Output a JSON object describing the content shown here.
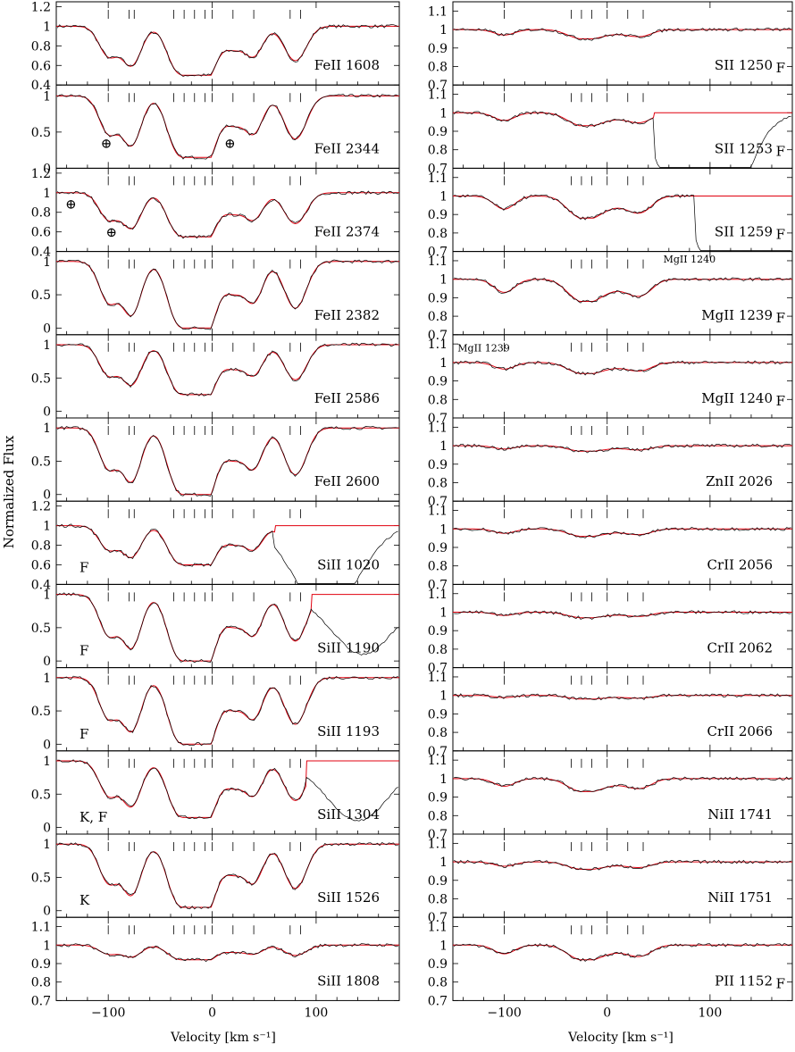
{
  "chart_data": {
    "type": "line",
    "ylabel": "Normalized Flux",
    "columns": [
      {
        "name": "left",
        "xlabel": "Velocity [km s⁻¹]",
        "xlim": [
          -150,
          180
        ],
        "x_ticks": [
          -100,
          0,
          100
        ],
        "x_tick_labels": [
          "−100",
          "0",
          "100"
        ],
        "panels": [
          {
            "label": "FeII 1608",
            "ylim": [
              0.4,
              1.25
            ],
            "yticks": [
              "0.4",
              "0.6",
              "0.8",
              "1",
              "1.2"
            ],
            "ytick_values": [
              0.4,
              0.6,
              0.8,
              1,
              1.2
            ],
            "continuum": 1.0,
            "depth": 0.5,
            "flags": [],
            "symbols": [],
            "cutoff": null
          },
          {
            "label": "FeII 2344",
            "ylim": [
              0,
              1.15
            ],
            "yticks": [
              "0",
              "0.5",
              "1"
            ],
            "ytick_values": [
              0,
              0.5,
              1
            ],
            "continuum": 1.0,
            "depth": 0.85,
            "flags": [],
            "symbols": [
              {
                "text": "⊕",
                "x": -102,
                "y": 0.28
              },
              {
                "text": "⊕",
                "x": 17,
                "y": 0.28
              }
            ],
            "cutoff": null
          },
          {
            "label": "FeII 2374",
            "ylim": [
              0.4,
              1.25
            ],
            "yticks": [
              "0.4",
              "0.6",
              "0.8",
              "1",
              "1.2"
            ],
            "ytick_values": [
              0.4,
              0.6,
              0.8,
              1,
              1.2
            ],
            "continuum": 1.0,
            "depth": 0.45,
            "flags": [],
            "symbols": [
              {
                "text": "⊕",
                "x": -136,
                "y": 0.84
              },
              {
                "text": "⊕",
                "x": -97,
                "y": 0.55
              }
            ],
            "cutoff": null
          },
          {
            "label": "FeII 2382",
            "ylim": [
              -0.1,
              1.15
            ],
            "yticks": [
              "0",
              "0.5",
              "1"
            ],
            "ytick_values": [
              0,
              0.5,
              1
            ],
            "continuum": 1.0,
            "depth": 1.0,
            "flags": [],
            "symbols": [],
            "cutoff": null
          },
          {
            "label": "FeII 2586",
            "ylim": [
              -0.1,
              1.15
            ],
            "yticks": [
              "0",
              "0.5",
              "1"
            ],
            "ytick_values": [
              0,
              0.5,
              1
            ],
            "continuum": 1.0,
            "depth": 0.75,
            "flags": [],
            "symbols": [],
            "cutoff": null
          },
          {
            "label": "FeII 2600",
            "ylim": [
              -0.1,
              1.15
            ],
            "yticks": [
              "0",
              "0.5",
              "1"
            ],
            "ytick_values": [
              0,
              0.5,
              1
            ],
            "continuum": 1.0,
            "depth": 1.0,
            "flags": [],
            "symbols": [],
            "cutoff": null
          },
          {
            "label": "SiII 1020",
            "ylim": [
              0.4,
              1.25
            ],
            "yticks": [
              "0.4",
              "0.6",
              "0.8",
              "1",
              "1.2"
            ],
            "ytick_values": [
              0.4,
              0.6,
              0.8,
              1,
              1.2
            ],
            "continuum": 1.0,
            "depth": 0.4,
            "flags": [
              "F"
            ],
            "symbols": [],
            "cutoff": 60
          },
          {
            "label": "SiII 1190",
            "ylim": [
              -0.1,
              1.15
            ],
            "yticks": [
              "0",
              "0.5",
              "1"
            ],
            "ytick_values": [
              0,
              0.5,
              1
            ],
            "continuum": 1.0,
            "depth": 1.0,
            "flags": [
              "F"
            ],
            "symbols": [],
            "cutoff": 95
          },
          {
            "label": "SiII 1193",
            "ylim": [
              -0.1,
              1.15
            ],
            "yticks": [
              "0",
              "0.5",
              "1"
            ],
            "ytick_values": [
              0,
              0.5,
              1
            ],
            "continuum": 1.0,
            "depth": 1.0,
            "flags": [
              "F"
            ],
            "symbols": [],
            "cutoff": null
          },
          {
            "label": "SiII 1304",
            "ylim": [
              -0.1,
              1.15
            ],
            "yticks": [
              "0",
              "0.5",
              "1"
            ],
            "ytick_values": [
              0,
              0.5,
              1
            ],
            "continuum": 1.0,
            "depth": 0.85,
            "flags": [
              "K, F"
            ],
            "symbols": [],
            "cutoff": 90
          },
          {
            "label": "SiII 1526",
            "ylim": [
              -0.1,
              1.15
            ],
            "yticks": [
              "0",
              "0.5",
              "1"
            ],
            "ytick_values": [
              0,
              0.5,
              1
            ],
            "continuum": 1.0,
            "depth": 0.95,
            "flags": [
              "K"
            ],
            "symbols": [],
            "cutoff": null
          },
          {
            "label": "SiII 1808",
            "ylim": [
              0.7,
              1.15
            ],
            "yticks": [
              "0.7",
              "0.8",
              "0.9",
              "1",
              "1.1"
            ],
            "ytick_values": [
              0.7,
              0.8,
              0.9,
              1,
              1.1
            ],
            "continuum": 1.0,
            "depth": 0.08,
            "flags": [],
            "symbols": [],
            "cutoff": null
          }
        ]
      },
      {
        "name": "right",
        "xlabel": "Velocity [km s⁻¹]",
        "xlim": [
          -150,
          180
        ],
        "x_ticks": [
          -100,
          0,
          100
        ],
        "x_tick_labels": [
          "−100",
          "0",
          "100"
        ],
        "panels": [
          {
            "label": "SII 1250",
            "ylim": [
              0.7,
              1.15
            ],
            "yticks": [
              "0.7",
              "0.8",
              "0.9",
              "1",
              "1.1"
            ],
            "ytick_values": [
              0.7,
              0.8,
              0.9,
              1,
              1.1
            ],
            "continuum": 1.0,
            "depth": 0.05,
            "flags": [
              "F"
            ],
            "symbols": [],
            "cutoff": null
          },
          {
            "label": "SII 1253",
            "ylim": [
              0.7,
              1.15
            ],
            "yticks": [
              "0.7",
              "0.8",
              "0.9",
              "1",
              "1.1"
            ],
            "ytick_values": [
              0.7,
              0.8,
              0.9,
              1,
              1.1
            ],
            "continuum": 1.0,
            "depth": 0.07,
            "flags": [
              "F"
            ],
            "symbols": [],
            "cutoff": 45
          },
          {
            "label": "SII 1259",
            "ylim": [
              0.7,
              1.15
            ],
            "yticks": [
              "0.7",
              "0.8",
              "0.9",
              "1",
              "1.1"
            ],
            "ytick_values": [
              0.7,
              0.8,
              0.9,
              1,
              1.1
            ],
            "continuum": 1.0,
            "depth": 0.12,
            "flags": [
              "F"
            ],
            "symbols": [],
            "cutoff": 85
          },
          {
            "label": "MgII 1239",
            "ylim": [
              0.7,
              1.15
            ],
            "yticks": [
              "0.7",
              "0.8",
              "0.9",
              "1",
              "1.1"
            ],
            "ytick_values": [
              0.7,
              0.8,
              0.9,
              1,
              1.1
            ],
            "continuum": 1.0,
            "depth": 0.12,
            "flags": [
              "F"
            ],
            "symbols": [
              {
                "text": "MgII 1240",
                "x": 80,
                "y": 1.09
              }
            ],
            "cutoff": null
          },
          {
            "label": "MgII 1240",
            "ylim": [
              0.7,
              1.15
            ],
            "yticks": [
              "0.7",
              "0.8",
              "0.9",
              "1",
              "1.1"
            ],
            "ytick_values": [
              0.7,
              0.8,
              0.9,
              1,
              1.1
            ],
            "continuum": 1.0,
            "depth": 0.06,
            "flags": [
              "F"
            ],
            "symbols": [
              {
                "text": "MgII 1239",
                "x": -120,
                "y": 1.06
              }
            ],
            "cutoff": null
          },
          {
            "label": "ZnII 2026",
            "ylim": [
              0.7,
              1.15
            ],
            "yticks": [
              "0.7",
              "0.8",
              "0.9",
              "1",
              "1.1"
            ],
            "ytick_values": [
              0.7,
              0.8,
              0.9,
              1,
              1.1
            ],
            "continuum": 1.0,
            "depth": 0.03,
            "flags": [],
            "symbols": [],
            "cutoff": null
          },
          {
            "label": "CrII 2056",
            "ylim": [
              0.7,
              1.15
            ],
            "yticks": [
              "0.7",
              "0.8",
              "0.9",
              "1",
              "1.1"
            ],
            "ytick_values": [
              0.7,
              0.8,
              0.9,
              1,
              1.1
            ],
            "continuum": 1.0,
            "depth": 0.04,
            "flags": [],
            "symbols": [],
            "cutoff": null
          },
          {
            "label": "CrII 2062",
            "ylim": [
              0.7,
              1.15
            ],
            "yticks": [
              "0.7",
              "0.8",
              "0.9",
              "1",
              "1.1"
            ],
            "ytick_values": [
              0.7,
              0.8,
              0.9,
              1,
              1.1
            ],
            "continuum": 1.0,
            "depth": 0.03,
            "flags": [],
            "symbols": [],
            "cutoff": null
          },
          {
            "label": "CrII 2066",
            "ylim": [
              0.7,
              1.15
            ],
            "yticks": [
              "0.7",
              "0.8",
              "0.9",
              "1",
              "1.1"
            ],
            "ytick_values": [
              0.7,
              0.8,
              0.9,
              1,
              1.1
            ],
            "continuum": 1.0,
            "depth": 0.02,
            "flags": [],
            "symbols": [],
            "cutoff": null
          },
          {
            "label": "NiII 1741",
            "ylim": [
              0.7,
              1.15
            ],
            "yticks": [
              "0.7",
              "0.8",
              "0.9",
              "1",
              "1.1"
            ],
            "ytick_values": [
              0.7,
              0.8,
              0.9,
              1,
              1.1
            ],
            "continuum": 1.0,
            "depth": 0.07,
            "flags": [],
            "symbols": [],
            "cutoff": null
          },
          {
            "label": "NiII 1751",
            "ylim": [
              0.7,
              1.15
            ],
            "yticks": [
              "0.7",
              "0.8",
              "0.9",
              "1",
              "1.1"
            ],
            "ytick_values": [
              0.7,
              0.8,
              0.9,
              1,
              1.1
            ],
            "continuum": 1.0,
            "depth": 0.04,
            "flags": [],
            "symbols": [],
            "cutoff": null
          },
          {
            "label": "PII 1152",
            "ylim": [
              0.7,
              1.15
            ],
            "yticks": [
              "0.7",
              "0.8",
              "0.9",
              "1",
              "1.1"
            ],
            "ytick_values": [
              0.7,
              0.8,
              0.9,
              1,
              1.1
            ],
            "continuum": 1.0,
            "depth": 0.08,
            "flags": [
              "F"
            ],
            "symbols": [],
            "cutoff": null
          }
        ]
      }
    ],
    "components_left": [
      -100,
      -80,
      -75,
      -37,
      -27,
      -17,
      -7,
      0,
      20,
      40,
      75,
      85
    ],
    "components_right": [
      -100,
      -35,
      -25,
      -15,
      0,
      20,
      35
    ],
    "grid": false,
    "legend": "none"
  }
}
